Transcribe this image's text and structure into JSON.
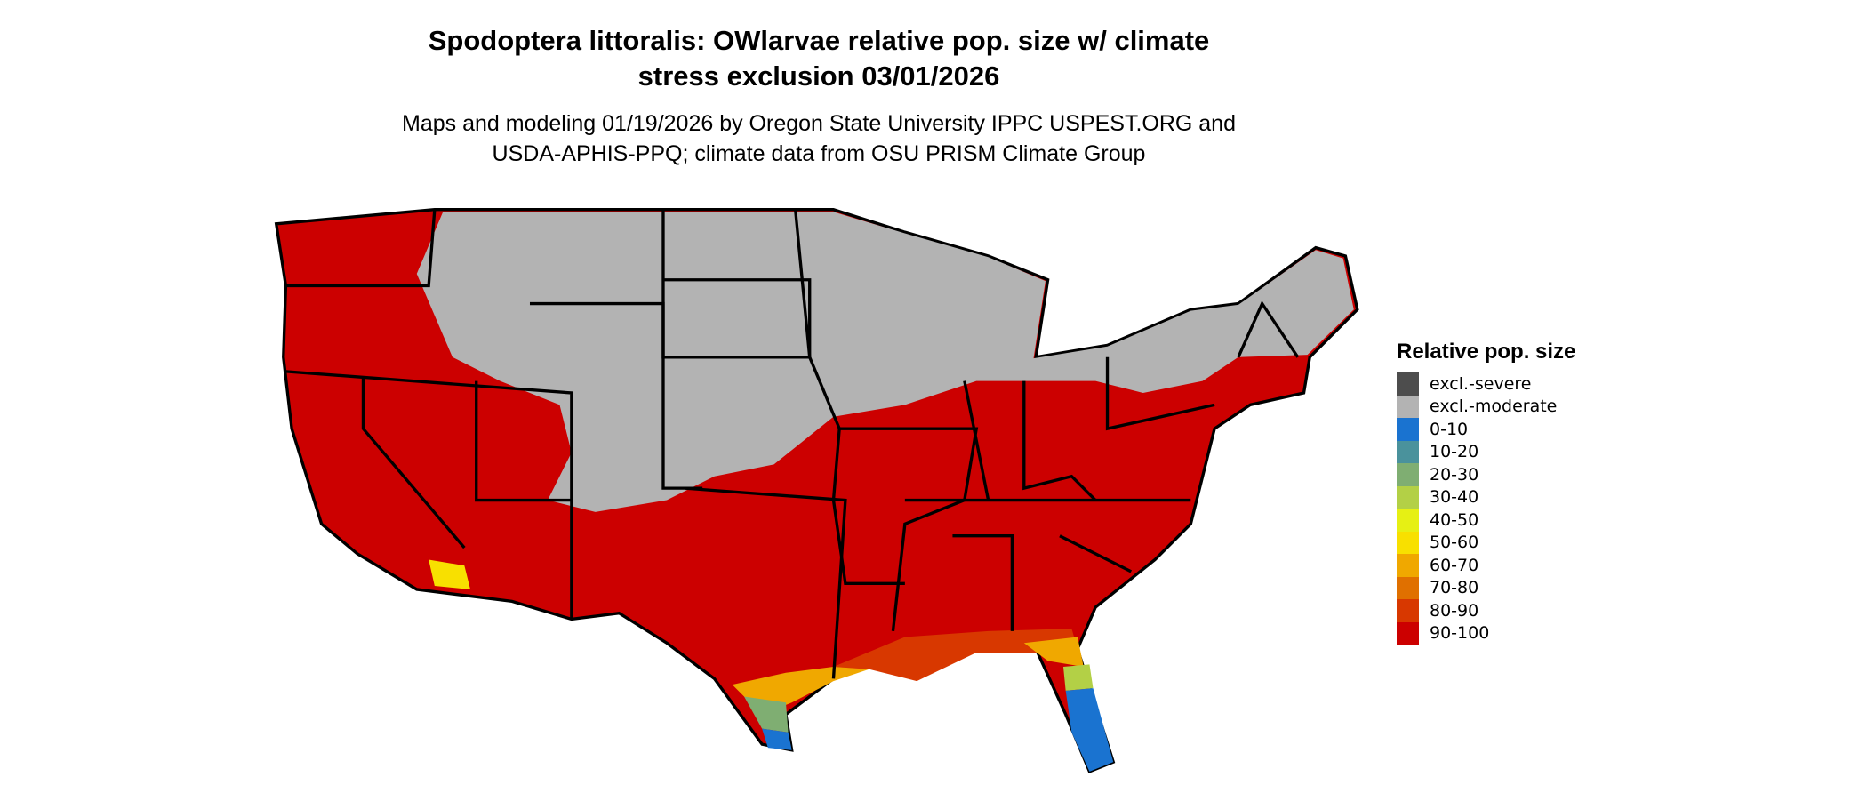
{
  "title": "Spodoptera littoralis: OWlarvae relative pop. size w/ climate stress exclusion 03/01/2026",
  "title_lines": [
    "Spodoptera littoralis: OWlarvae relative pop. size w/ climate",
    "stress exclusion 03/01/2026"
  ],
  "subtitle_lines": [
    "Maps and modeling 01/19/2026 by Oregon State University IPPC USPEST.ORG and",
    "USDA-APHIS-PPQ; climate data from OSU PRISM Climate Group"
  ],
  "legend": {
    "title": "Relative pop. size",
    "items": [
      {
        "label": "excl.-severe",
        "color": "#4d4d4d"
      },
      {
        "label": "excl.-moderate",
        "color": "#b3b3b3"
      },
      {
        "label": "0-10",
        "color": "#1a73d0"
      },
      {
        "label": "10-20",
        "color": "#4a929c"
      },
      {
        "label": "20-30",
        "color": "#7fae72"
      },
      {
        "label": "30-40",
        "color": "#b3d046"
      },
      {
        "label": "40-50",
        "color": "#e6f014"
      },
      {
        "label": "50-60",
        "color": "#f8e000"
      },
      {
        "label": "60-70",
        "color": "#f0a800"
      },
      {
        "label": "70-80",
        "color": "#e07000"
      },
      {
        "label": "80-90",
        "color": "#d83800"
      },
      {
        "label": "90-100",
        "color": "#cc0000"
      }
    ]
  }
}
